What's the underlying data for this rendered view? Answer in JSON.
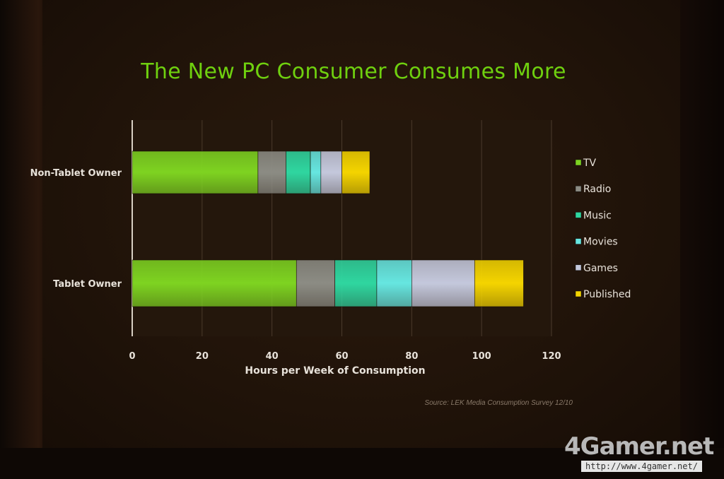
{
  "chart_data": {
    "type": "bar",
    "orientation": "horizontal",
    "stacked": true,
    "title": "The New PC Consumer Consumes More",
    "xlabel": "Hours per Week of Consumption",
    "ylabel": "",
    "xlim": [
      0,
      120
    ],
    "x_ticks": [
      "0",
      "20",
      "40",
      "60",
      "80",
      "100",
      "120"
    ],
    "categories": [
      "Non-Tablet Owner",
      "Tablet Owner"
    ],
    "grid": true,
    "legend_position": "right",
    "series": [
      {
        "name": "TV",
        "color": "#7ed321",
        "values": [
          36,
          47
        ]
      },
      {
        "name": "Radio",
        "color": "#8c8c84",
        "values": [
          8,
          11
        ]
      },
      {
        "name": "Music",
        "color": "#2fd6a0",
        "values": [
          7,
          12
        ]
      },
      {
        "name": "Movies",
        "color": "#66e6e0",
        "values": [
          3,
          10
        ]
      },
      {
        "name": "Games",
        "color": "#c4c8dc",
        "values": [
          6,
          18
        ]
      },
      {
        "name": "Published",
        "color": "#f4d400",
        "values": [
          8,
          14
        ]
      }
    ],
    "source": "Source:  LEK Media Consumption Survey 12/10"
  },
  "watermark": {
    "logo": "4Gamer.net",
    "url": "http://www.4gamer.net/"
  }
}
